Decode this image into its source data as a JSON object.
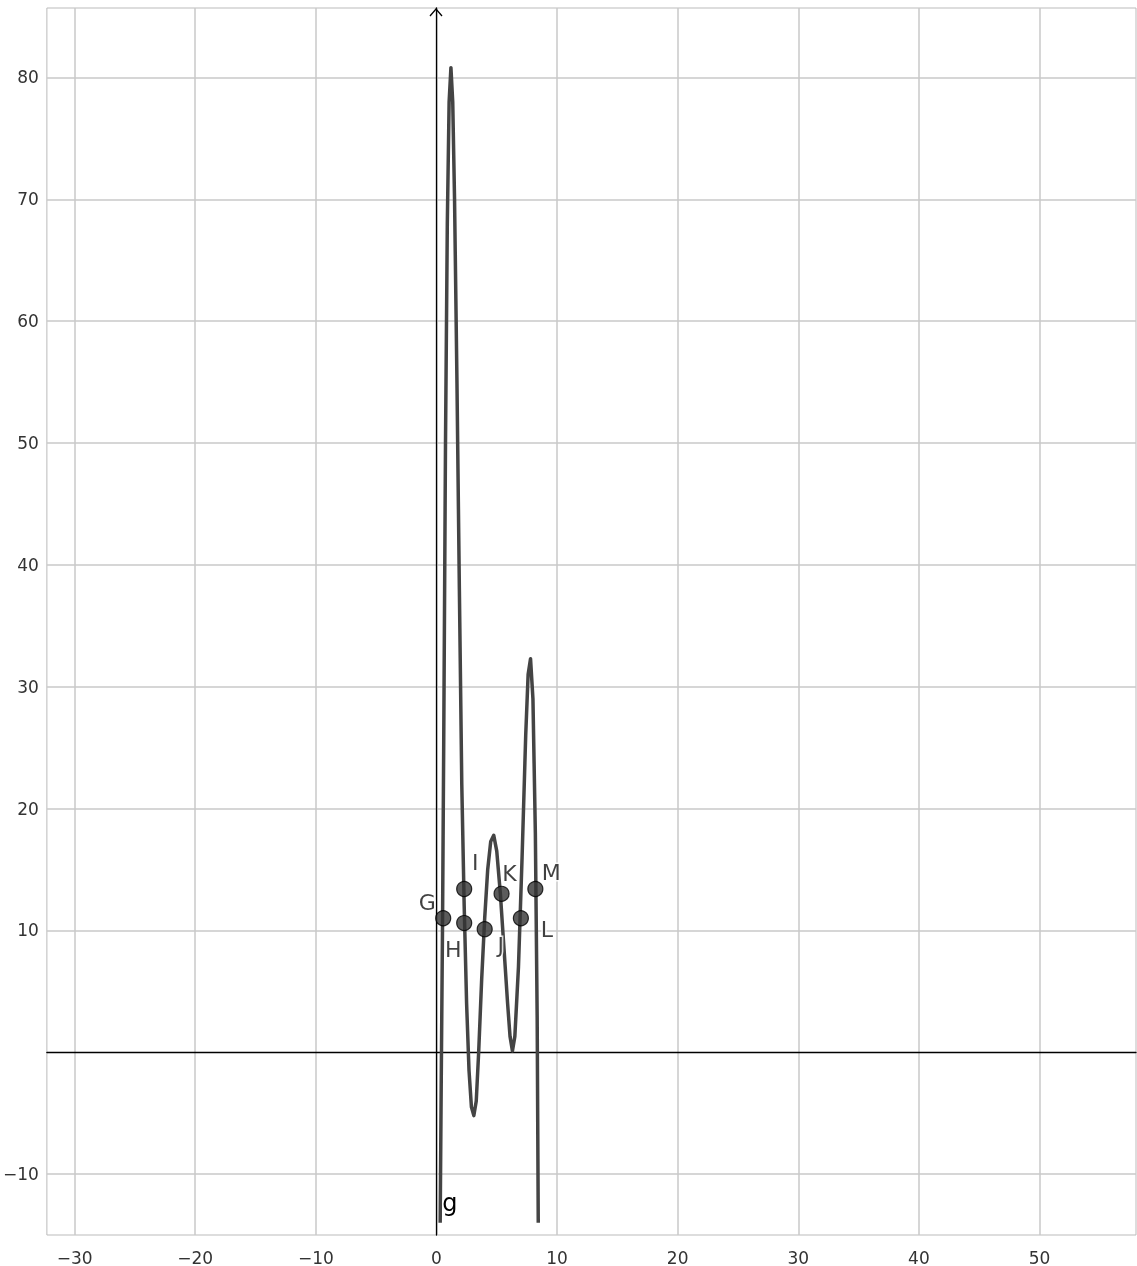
{
  "chart_data": {
    "type": "line",
    "xlim": [
      -32.3,
      58
    ],
    "ylim": [
      -15,
      85.7
    ],
    "xticks": [
      {
        "value": -30,
        "label": "−30"
      },
      {
        "value": -20,
        "label": "−20"
      },
      {
        "value": -10,
        "label": "−10"
      },
      0,
      10,
      20,
      30,
      40,
      50
    ],
    "yticks": [
      {
        "value": -10,
        "label": "−10"
      },
      10,
      20,
      30,
      40,
      50,
      60,
      70,
      80
    ],
    "grid": true,
    "legend": false,
    "series": [
      {
        "name": "g",
        "color": "#444444",
        "marker": "none",
        "x": [
          0.31,
          0.4,
          0.5,
          0.6,
          0.75,
          0.9,
          1.05,
          1.2,
          1.35,
          1.5,
          1.7,
          1.9,
          2.1,
          2.3,
          2.5,
          2.7,
          2.9,
          3.1,
          3.3,
          3.5,
          3.75,
          4.0,
          4.25,
          4.5,
          4.75,
          5.0,
          5.3,
          5.6,
          5.9,
          6.1,
          6.3,
          6.5,
          6.8,
          7.1,
          7.4,
          7.6,
          7.8,
          8.0,
          8.2,
          8.35,
          8.44
        ],
        "values": [
          -14,
          -2,
          10,
          25,
          50,
          68,
          78,
          80.8,
          78,
          70,
          55,
          38,
          22,
          12,
          4,
          -1.5,
          -4.5,
          -5.2,
          -4,
          0,
          6,
          11,
          15,
          17.3,
          17.8,
          16.5,
          13,
          8.5,
          4,
          1.3,
          0.1,
          1.3,
          7,
          16,
          26,
          31,
          32.3,
          29,
          18,
          3,
          -14
        ]
      },
      {
        "type": "scatter",
        "color": "#333333",
        "marker": "circle",
        "x": [
          0.56,
          2.3,
          2.3,
          4.0,
          5.4,
          7.0,
          8.2
        ],
        "values": [
          11.0,
          10.6,
          13.4,
          10.1,
          13.0,
          11.0,
          13.4
        ]
      }
    ],
    "annotations": [
      {
        "text": "G",
        "x": 0.56,
        "y": 11.0
      },
      {
        "text": "H",
        "x": 2.3,
        "y": 10.6
      },
      {
        "text": "I",
        "x": 2.3,
        "y": 13.4
      },
      {
        "text": "J",
        "x": 4.0,
        "y": 10.1
      },
      {
        "text": "K",
        "x": 5.4,
        "y": 13.0
      },
      {
        "text": "L",
        "x": 7.0,
        "y": 11.0
      },
      {
        "text": "M",
        "x": 8.2,
        "y": 13.4
      }
    ]
  }
}
